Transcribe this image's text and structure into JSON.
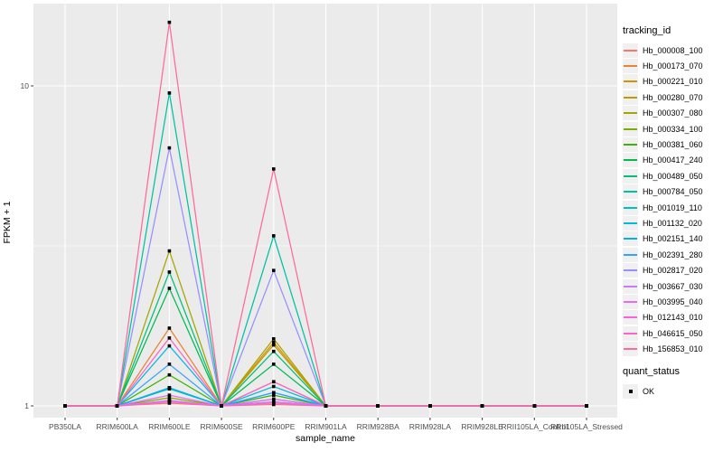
{
  "colors": {
    "panel_bg": "#EBEBEB",
    "grid": "#FFFFFF",
    "tick_text": "#4D4D4D",
    "axis_title": "#000000",
    "point": "#000000",
    "legend_key_bg": "#F0F0F0"
  },
  "chart_data": {
    "type": "line",
    "xlabel": "sample_name",
    "ylabel": "FPKM + 1",
    "legend_title": "tracking_id",
    "legend_position": "right",
    "y_scale": "log10",
    "ylim": [
      0.97,
      18.2
    ],
    "y_ticks": [
      1,
      10
    ],
    "y_minor_gridlines": [
      3.162
    ],
    "grid": "white major gridlines on gray panel",
    "point_shape": "filled-black-square",
    "point_legend": {
      "title": "quant_status",
      "items": [
        {
          "label": "OK"
        }
      ]
    },
    "x_categories": [
      "PB350LA",
      "RRIM600LA",
      "RRIM600LE",
      "RRIM600SE",
      "RRIM600PE",
      "RRIM901LA",
      "RRIM928BA",
      "RRIM928LA",
      "RRIM928LE",
      "RRII105LA_Control",
      "RRII105LA_Stressed"
    ],
    "series": [
      {
        "name": "Hb_000008_100",
        "color": "#F8766D",
        "values": [
          1,
          1,
          1.02,
          1,
          1.01,
          1,
          1,
          1,
          1,
          1,
          1
        ]
      },
      {
        "name": "Hb_000173_070",
        "color": "#EA8331",
        "values": [
          1,
          1,
          1.75,
          1,
          1.19,
          1,
          1,
          1,
          1,
          1,
          1
        ]
      },
      {
        "name": "Hb_000221_010",
        "color": "#D89000",
        "values": [
          1,
          1,
          1.14,
          1,
          1.58,
          1,
          1,
          1,
          1,
          1,
          1
        ]
      },
      {
        "name": "Hb_000280_070",
        "color": "#C09B00",
        "values": [
          1,
          1,
          1.04,
          1,
          1.55,
          1,
          1,
          1,
          1,
          1,
          1
        ]
      },
      {
        "name": "Hb_000307_080",
        "color": "#A3A500",
        "values": [
          1,
          1,
          3.05,
          1,
          1.62,
          1,
          1,
          1,
          1,
          1,
          1
        ]
      },
      {
        "name": "Hb_000334_100",
        "color": "#7CAE00",
        "values": [
          1,
          1,
          1.06,
          1,
          1.03,
          1,
          1,
          1,
          1,
          1,
          1
        ]
      },
      {
        "name": "Hb_000381_060",
        "color": "#39B600",
        "values": [
          1,
          1,
          1.25,
          1,
          1.08,
          1,
          1,
          1,
          1,
          1,
          1
        ]
      },
      {
        "name": "Hb_000417_240",
        "color": "#00BB4E",
        "values": [
          1,
          1,
          2.33,
          1,
          1.35,
          1,
          1,
          1,
          1,
          1,
          1
        ]
      },
      {
        "name": "Hb_000489_050",
        "color": "#00BF7D",
        "values": [
          1,
          1,
          2.62,
          1,
          1.48,
          1,
          1,
          1,
          1,
          1,
          1
        ]
      },
      {
        "name": "Hb_000784_050",
        "color": "#00C1A3",
        "values": [
          1,
          1,
          9.5,
          1,
          3.4,
          1,
          1,
          1,
          1,
          1,
          1
        ]
      },
      {
        "name": "Hb_001019_110",
        "color": "#00BFC4",
        "values": [
          1,
          1,
          1.13,
          1,
          1.05,
          1,
          1,
          1,
          1,
          1,
          1
        ]
      },
      {
        "name": "Hb_001132_020",
        "color": "#00BAE0",
        "values": [
          1,
          1,
          1.54,
          1,
          1.15,
          1,
          1,
          1,
          1,
          1,
          1
        ]
      },
      {
        "name": "Hb_002151_140",
        "color": "#00B0F6",
        "values": [
          1,
          1,
          1.14,
          1,
          1.1,
          1,
          1,
          1,
          1,
          1,
          1
        ]
      },
      {
        "name": "Hb_002391_280",
        "color": "#35A2FF",
        "values": [
          1,
          1,
          1.35,
          1,
          1.1,
          1,
          1,
          1,
          1,
          1,
          1
        ]
      },
      {
        "name": "Hb_002817_020",
        "color": "#9590FF",
        "values": [
          1,
          1,
          6.4,
          1,
          2.65,
          1,
          1,
          1,
          1,
          1,
          1
        ]
      },
      {
        "name": "Hb_003667_030",
        "color": "#C77CFF",
        "values": [
          1,
          1,
          1.04,
          1,
          1.03,
          1,
          1,
          1,
          1,
          1,
          1
        ]
      },
      {
        "name": "Hb_003995_040",
        "color": "#E76BF3",
        "values": [
          1,
          1,
          1.08,
          1,
          1.05,
          1,
          1,
          1,
          1,
          1,
          1
        ]
      },
      {
        "name": "Hb_012143_010",
        "color": "#FA62DB",
        "values": [
          1,
          1,
          1.03,
          1,
          1.02,
          1,
          1,
          1,
          1,
          1,
          1
        ]
      },
      {
        "name": "Hb_046615_050",
        "color": "#FF61C8",
        "values": [
          1,
          1,
          1.63,
          1,
          1.19,
          1,
          1,
          1,
          1,
          1,
          1
        ]
      },
      {
        "name": "Hb_156853_010",
        "color": "#FF6A98",
        "values": [
          1,
          1,
          15.8,
          1,
          5.5,
          1,
          1,
          1,
          1,
          1,
          1
        ]
      }
    ]
  }
}
